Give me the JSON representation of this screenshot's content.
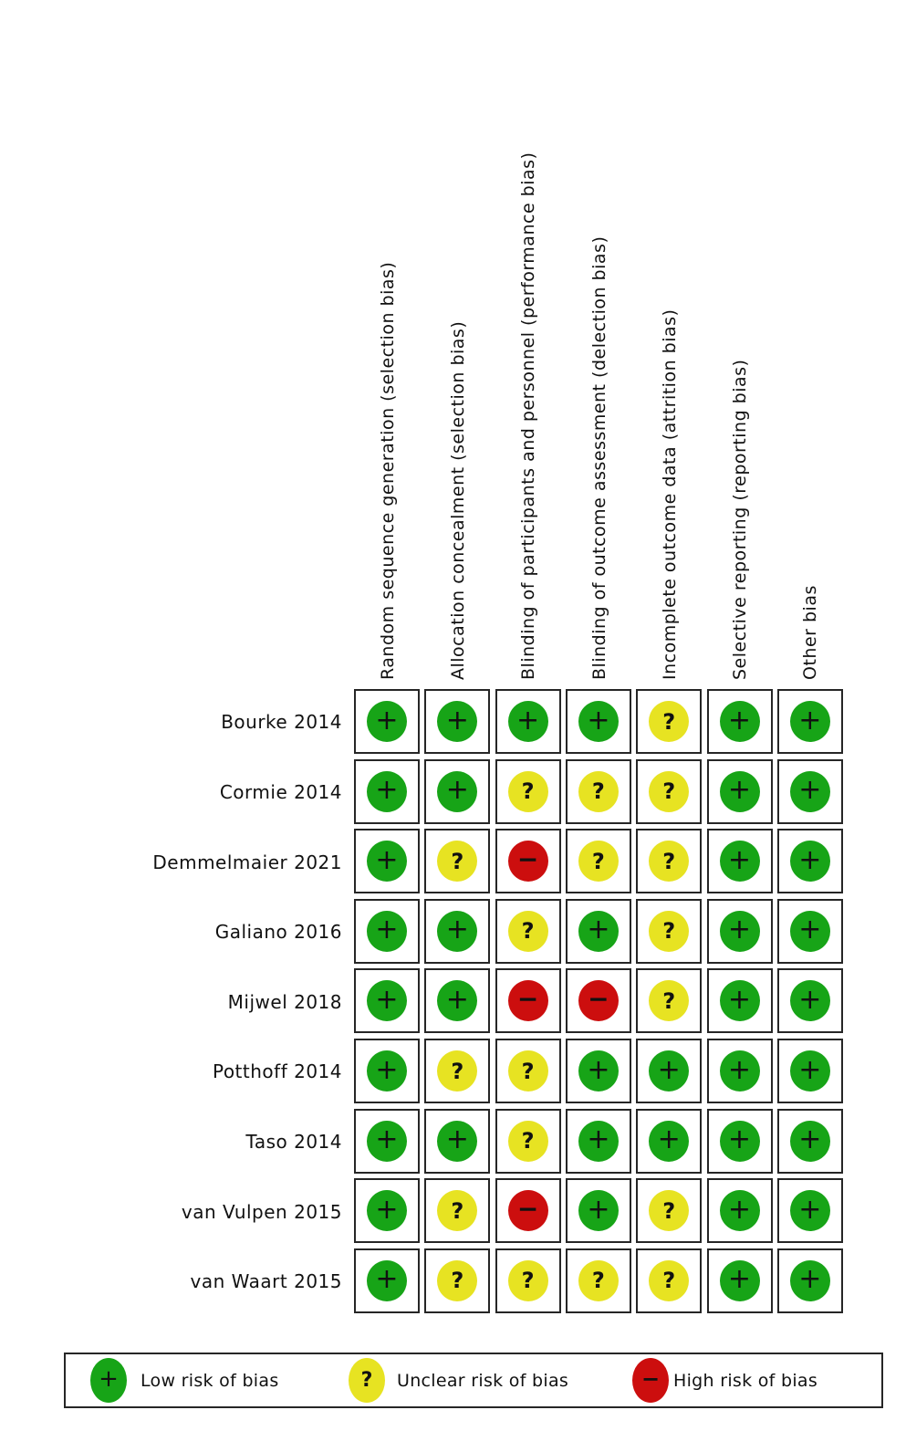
{
  "figure_name": "risk-of-bias-summary",
  "chart_data": {
    "type": "heatmap",
    "columns": [
      "Random sequence generation (selection bias)",
      "Allocation concealment (selection bias)",
      "Blinding of participants and personnel (performance bias)",
      "Blinding of outcome assessment (delection bias)",
      "Incomplete outcome data (attrition bias)",
      "Selective reporting (reporting bias)",
      "Other bias"
    ],
    "rows": [
      "Bourke 2014",
      "Cormie 2014",
      "Demmelmaier 2021",
      "Galiano 2016",
      "Mijwel 2018",
      "Potthoff 2014",
      "Taso 2014",
      "van Vulpen 2015",
      "van Waart 2015"
    ],
    "values": [
      [
        "+",
        "+",
        "+",
        "+",
        "?",
        "+",
        "+"
      ],
      [
        "+",
        "+",
        "?",
        "?",
        "?",
        "+",
        "+"
      ],
      [
        "+",
        "?",
        "-",
        "?",
        "?",
        "+",
        "+"
      ],
      [
        "+",
        "+",
        "?",
        "+",
        "?",
        "+",
        "+"
      ],
      [
        "+",
        "+",
        "-",
        "-",
        "?",
        "+",
        "+"
      ],
      [
        "+",
        "?",
        "?",
        "+",
        "+",
        "+",
        "+"
      ],
      [
        "+",
        "+",
        "?",
        "+",
        "+",
        "+",
        "+"
      ],
      [
        "+",
        "?",
        "-",
        "+",
        "?",
        "+",
        "+"
      ],
      [
        "+",
        "?",
        "?",
        "?",
        "?",
        "+",
        "+"
      ]
    ],
    "symbol_meaning": {
      "+": "low",
      "?": "unclear",
      "-": "high"
    },
    "colors": {
      "low": "#17A417",
      "unclear": "#E7E322",
      "high": "#CC0E0E"
    },
    "legend": [
      {
        "symbol": "+",
        "risk": "low",
        "label": "Low risk of bias"
      },
      {
        "symbol": "?",
        "risk": "unclear",
        "label": "Unclear risk of bias"
      },
      {
        "symbol": "-",
        "risk": "high",
        "label": "High risk of bias"
      }
    ],
    "layout_hints": {
      "grid": "on",
      "legend_position": "bottom",
      "column_labels_rotated_degrees": 90
    }
  }
}
